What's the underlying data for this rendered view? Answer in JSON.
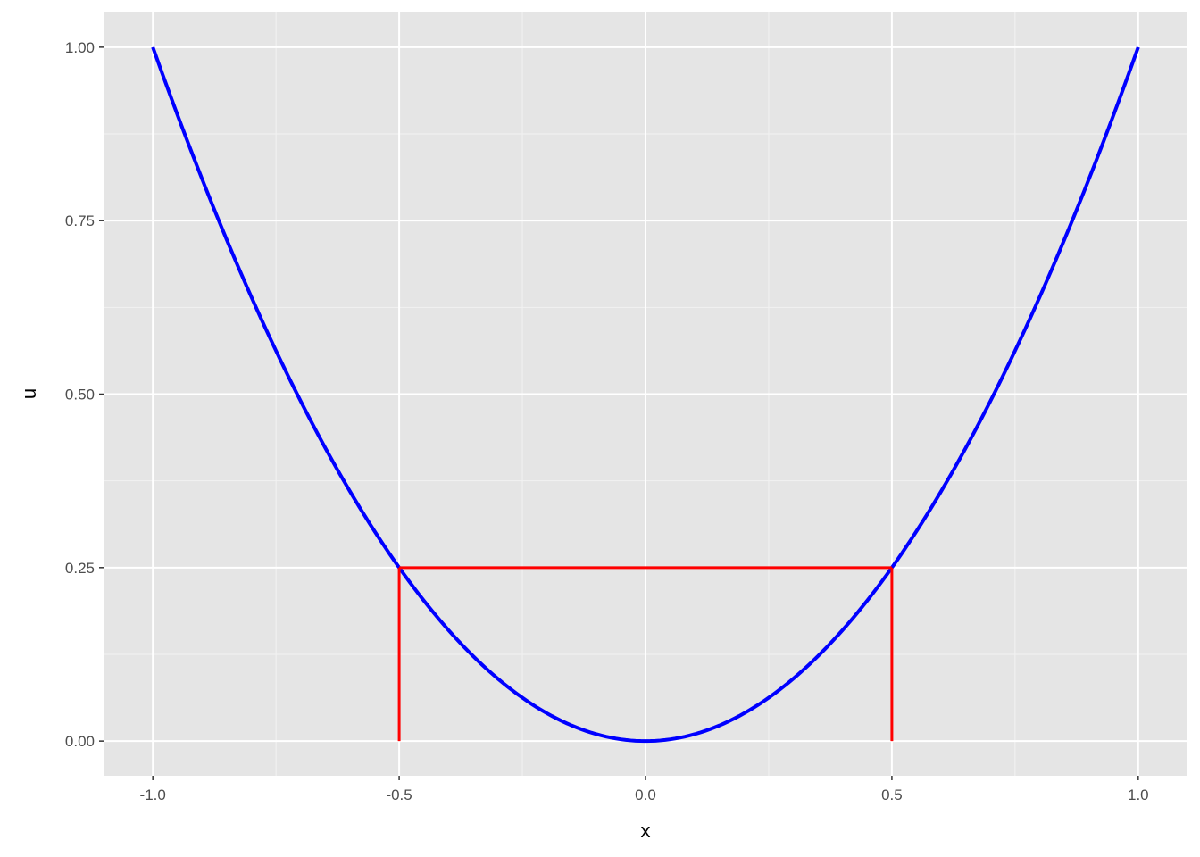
{
  "chart_data": {
    "type": "line",
    "title": "",
    "xlabel": "x",
    "ylabel": "u",
    "xlim": [
      -1.1,
      1.1
    ],
    "ylim": [
      -0.05,
      1.05
    ],
    "x_ticks": [
      "-1.0",
      "-0.5",
      "0.0",
      "0.5",
      "1.0"
    ],
    "x_tick_values": [
      -1,
      -0.5,
      0,
      0.5,
      1
    ],
    "y_ticks": [
      "0.00",
      "0.25",
      "0.50",
      "0.75",
      "1.00"
    ],
    "y_tick_values": [
      0,
      0.25,
      0.5,
      0.75,
      1
    ],
    "grid": true,
    "background": "#e5e5e5",
    "series": [
      {
        "function": "u = x^2",
        "x_range": [
          -1,
          1
        ],
        "color": "#0000ff"
      }
    ],
    "segments": [
      {
        "x": [
          -0.5,
          -0.5
        ],
        "y": [
          0,
          0.25
        ],
        "color": "#ff0000"
      },
      {
        "x": [
          -0.5,
          0.5
        ],
        "y": [
          0.25,
          0.25
        ],
        "color": "#ff0000"
      },
      {
        "x": [
          0.5,
          0.5
        ],
        "y": [
          0,
          0.25
        ],
        "color": "#ff0000"
      }
    ]
  }
}
